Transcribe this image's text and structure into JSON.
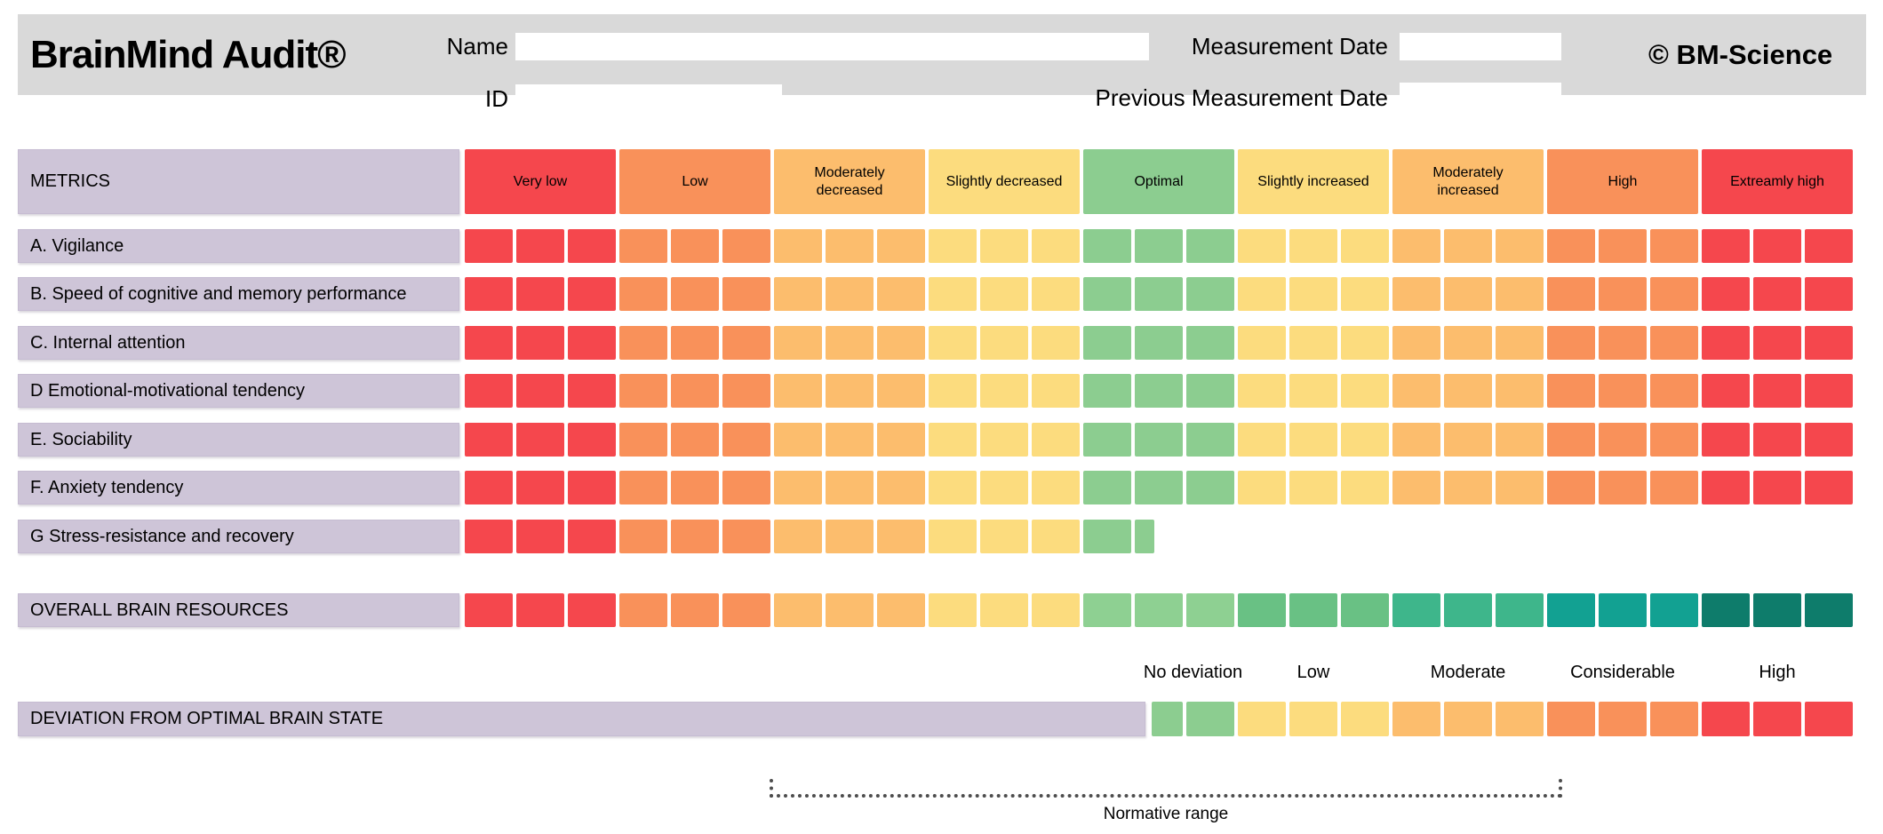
{
  "header": {
    "title": "BrainMind Audit®",
    "copyright": "© BM-Science",
    "name_label": "Name",
    "name_value": "",
    "id_label": "ID",
    "id_value": "",
    "measurement_date_label": "Measurement Date",
    "measurement_date_value": "",
    "previous_measurement_date_label": "Previous Measurement Date",
    "previous_measurement_date_value": ""
  },
  "palette": {
    "header_bg": "#d9d9d9",
    "label_bg": "#cec5d8",
    "red": "#f5474d",
    "orange": "#f9915a",
    "light_orange": "#fcbd6d",
    "yellow": "#fcdc7e",
    "green": "#8ccd90",
    "green1": "#8ed092",
    "green2": "#69c184",
    "green3": "#3eb68b",
    "green4": "#12a192",
    "green5": "#0e7c6b"
  },
  "scale_header": {
    "metrics_label": "METRICS",
    "bands": [
      {
        "label": "Very low",
        "color": "red"
      },
      {
        "label": "Low",
        "color": "orange"
      },
      {
        "label": "Moderately decreased",
        "color": "light_orange"
      },
      {
        "label": "Slightly decreased",
        "color": "yellow"
      },
      {
        "label": "Optimal",
        "color": "green"
      },
      {
        "label": "Slightly increased",
        "color": "yellow"
      },
      {
        "label": "Moderately increased",
        "color": "light_orange"
      },
      {
        "label": "High",
        "color": "orange"
      },
      {
        "label": "Extreamly high",
        "color": "red"
      }
    ]
  },
  "metric_rows": [
    {
      "label": "A. Vigilance",
      "segments": [
        {
          "color": "red",
          "cells": 3
        },
        {
          "color": "orange",
          "cells": 3
        },
        {
          "color": "light_orange",
          "cells": 3
        },
        {
          "color": "yellow",
          "cells": 3
        },
        {
          "color": "green",
          "cells": 3
        },
        {
          "color": "yellow",
          "cells": 3
        },
        {
          "color": "light_orange",
          "cells": 3
        },
        {
          "color": "orange",
          "cells": 3
        },
        {
          "color": "red",
          "cells": 3
        }
      ]
    },
    {
      "label": "B. Speed of cognitive and memory performance",
      "segments": [
        {
          "color": "red",
          "cells": 3
        },
        {
          "color": "orange",
          "cells": 3
        },
        {
          "color": "light_orange",
          "cells": 3
        },
        {
          "color": "yellow",
          "cells": 3
        },
        {
          "color": "green",
          "cells": 3
        },
        {
          "color": "yellow",
          "cells": 3
        },
        {
          "color": "light_orange",
          "cells": 3
        },
        {
          "color": "orange",
          "cells": 3
        },
        {
          "color": "red",
          "cells": 3
        }
      ]
    },
    {
      "label": "C. Internal attention",
      "segments": [
        {
          "color": "red",
          "cells": 3
        },
        {
          "color": "orange",
          "cells": 3
        },
        {
          "color": "light_orange",
          "cells": 3
        },
        {
          "color": "yellow",
          "cells": 3
        },
        {
          "color": "green",
          "cells": 3
        },
        {
          "color": "yellow",
          "cells": 3
        },
        {
          "color": "light_orange",
          "cells": 3
        },
        {
          "color": "orange",
          "cells": 3
        },
        {
          "color": "red",
          "cells": 3
        }
      ]
    },
    {
      "label": "D Emotional-motivational tendency",
      "segments": [
        {
          "color": "red",
          "cells": 3
        },
        {
          "color": "orange",
          "cells": 3
        },
        {
          "color": "light_orange",
          "cells": 3
        },
        {
          "color": "yellow",
          "cells": 3
        },
        {
          "color": "green",
          "cells": 3
        },
        {
          "color": "yellow",
          "cells": 3
        },
        {
          "color": "light_orange",
          "cells": 3
        },
        {
          "color": "orange",
          "cells": 3
        },
        {
          "color": "red",
          "cells": 3
        }
      ]
    },
    {
      "label": "E. Sociability",
      "segments": [
        {
          "color": "red",
          "cells": 3
        },
        {
          "color": "orange",
          "cells": 3
        },
        {
          "color": "light_orange",
          "cells": 3
        },
        {
          "color": "yellow",
          "cells": 3
        },
        {
          "color": "green",
          "cells": 3
        },
        {
          "color": "yellow",
          "cells": 3
        },
        {
          "color": "light_orange",
          "cells": 3
        },
        {
          "color": "orange",
          "cells": 3
        },
        {
          "color": "red",
          "cells": 3
        }
      ]
    },
    {
      "label": "F. Anxiety tendency",
      "segments": [
        {
          "color": "red",
          "cells": 3
        },
        {
          "color": "orange",
          "cells": 3
        },
        {
          "color": "light_orange",
          "cells": 3
        },
        {
          "color": "yellow",
          "cells": 3
        },
        {
          "color": "green",
          "cells": 3
        },
        {
          "color": "yellow",
          "cells": 3
        },
        {
          "color": "light_orange",
          "cells": 3
        },
        {
          "color": "orange",
          "cells": 3
        },
        {
          "color": "red",
          "cells": 3
        }
      ]
    },
    {
      "label": "G Stress-resistance and recovery",
      "segments": [
        {
          "color": "red",
          "cells": 3
        },
        {
          "color": "orange",
          "cells": 3
        },
        {
          "color": "light_orange",
          "cells": 3
        },
        {
          "color": "yellow",
          "cells": 3
        },
        {
          "color": "green",
          "cells": 1
        },
        {
          "color": "green",
          "cells": 0.4
        }
      ]
    }
  ],
  "overall_row": {
    "label": "OVERALL BRAIN RESOURCES",
    "segments": [
      {
        "color": "red",
        "cells": 3
      },
      {
        "color": "orange",
        "cells": 3
      },
      {
        "color": "light_orange",
        "cells": 3
      },
      {
        "color": "yellow",
        "cells": 3
      },
      {
        "color": "green1",
        "cells": 3
      },
      {
        "color": "green2",
        "cells": 3
      },
      {
        "color": "green3",
        "cells": 3
      },
      {
        "color": "green4",
        "cells": 3
      },
      {
        "color": "green5",
        "cells": 3
      }
    ]
  },
  "deviation": {
    "label": "DEVIATION FROM OPTIMAL BRAIN STATE",
    "scale_labels": [
      "No deviation",
      "Low",
      "Moderate",
      "Considerable",
      "High"
    ],
    "segments": [
      {
        "color": "green",
        "cells": 0.65
      },
      {
        "color": "green",
        "cells": 1
      },
      {
        "color": "yellow",
        "cells": 3
      },
      {
        "color": "light_orange",
        "cells": 3
      },
      {
        "color": "orange",
        "cells": 3
      },
      {
        "color": "red",
        "cells": 3
      }
    ]
  },
  "normative_range_label": "Normative range"
}
